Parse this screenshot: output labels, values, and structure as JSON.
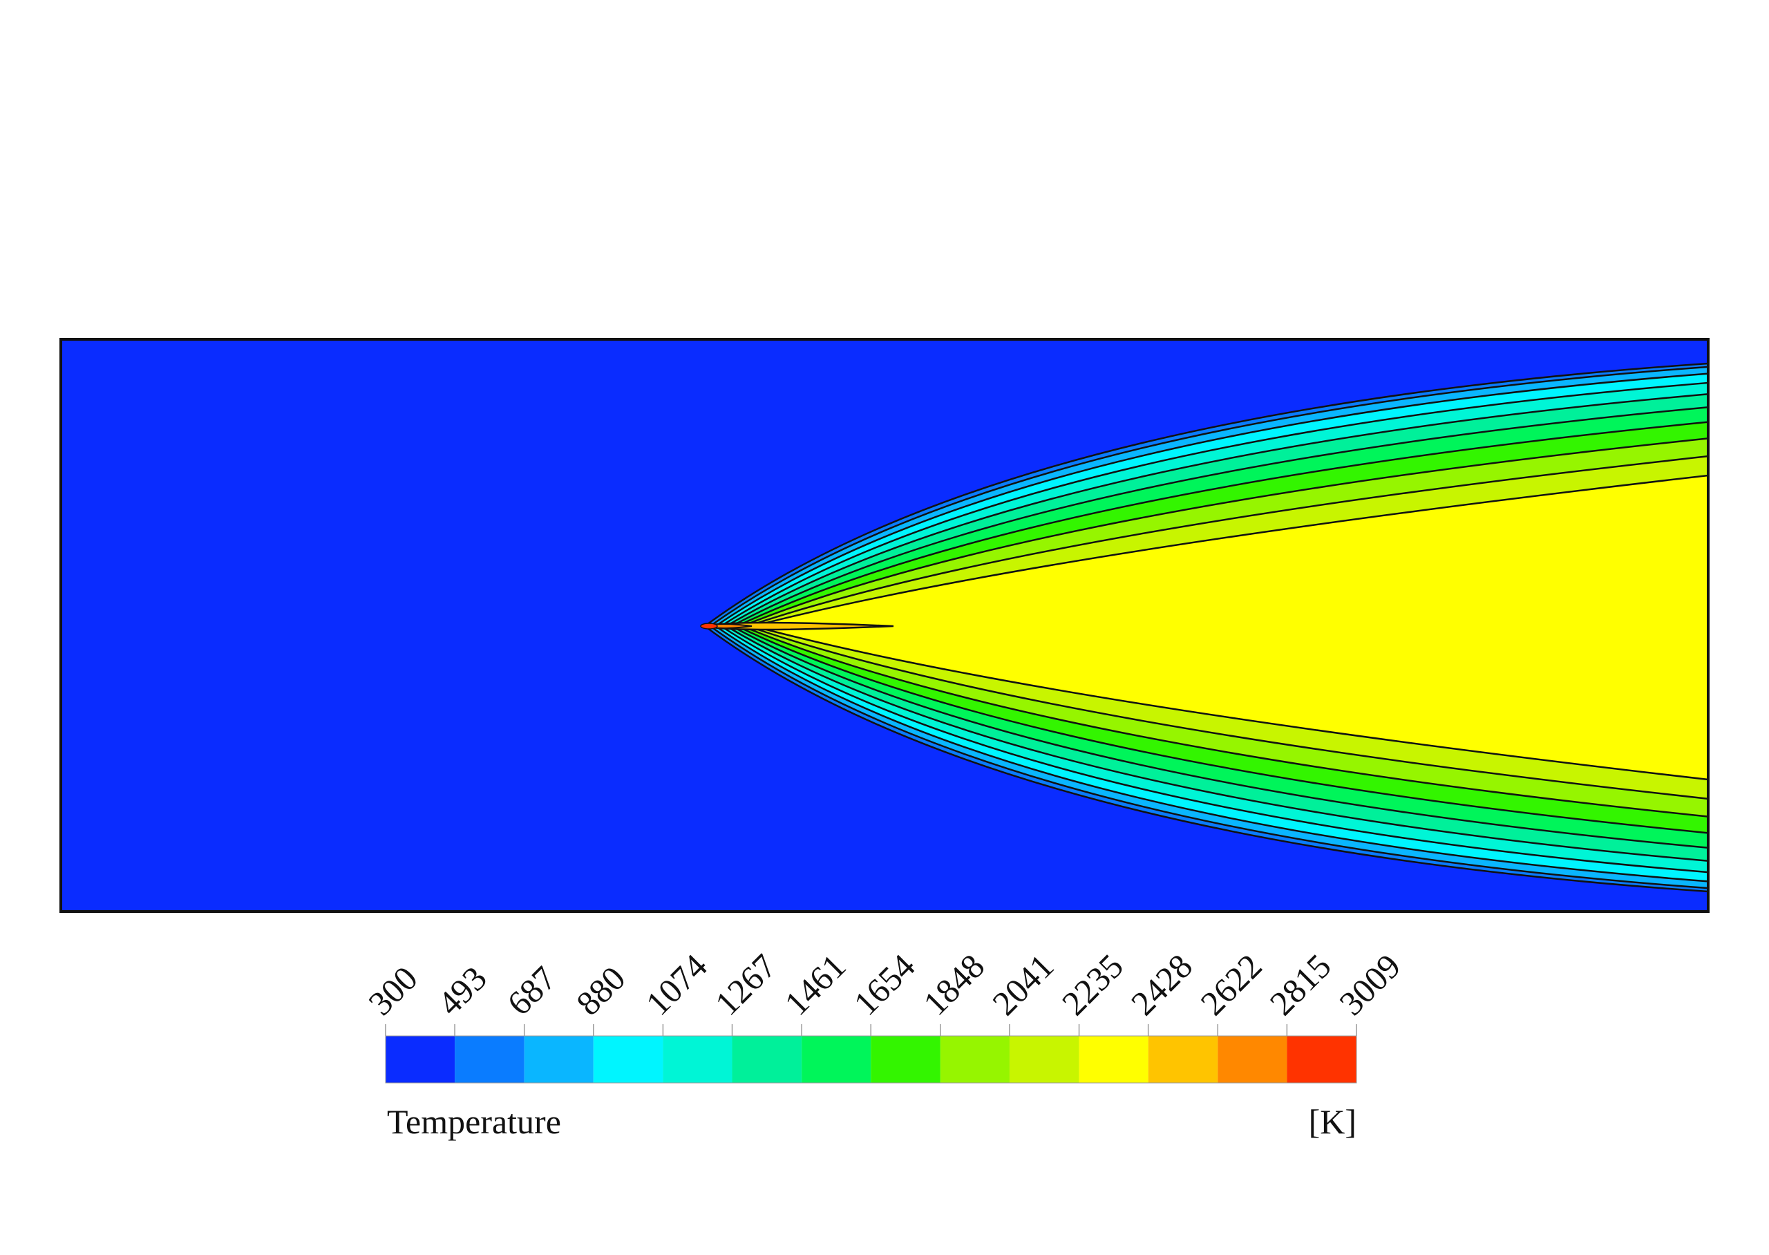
{
  "chart_data": {
    "type": "contour",
    "colorbar_title": "Temperature",
    "colorbar_unit": "[K]",
    "levels": [
      300,
      493,
      687,
      880,
      1074,
      1267,
      1461,
      1654,
      1848,
      2041,
      2235,
      2428,
      2622,
      2815,
      3009
    ],
    "colors": [
      "#0a2cff",
      "#0a7cff",
      "#0ab6ff",
      "#00f5ff",
      "#00f5d6",
      "#00f09a",
      "#00f55a",
      "#33f500",
      "#96f500",
      "#c8f500",
      "#ffff00",
      "#ffc400",
      "#ff8800",
      "#ff3300"
    ]
  }
}
